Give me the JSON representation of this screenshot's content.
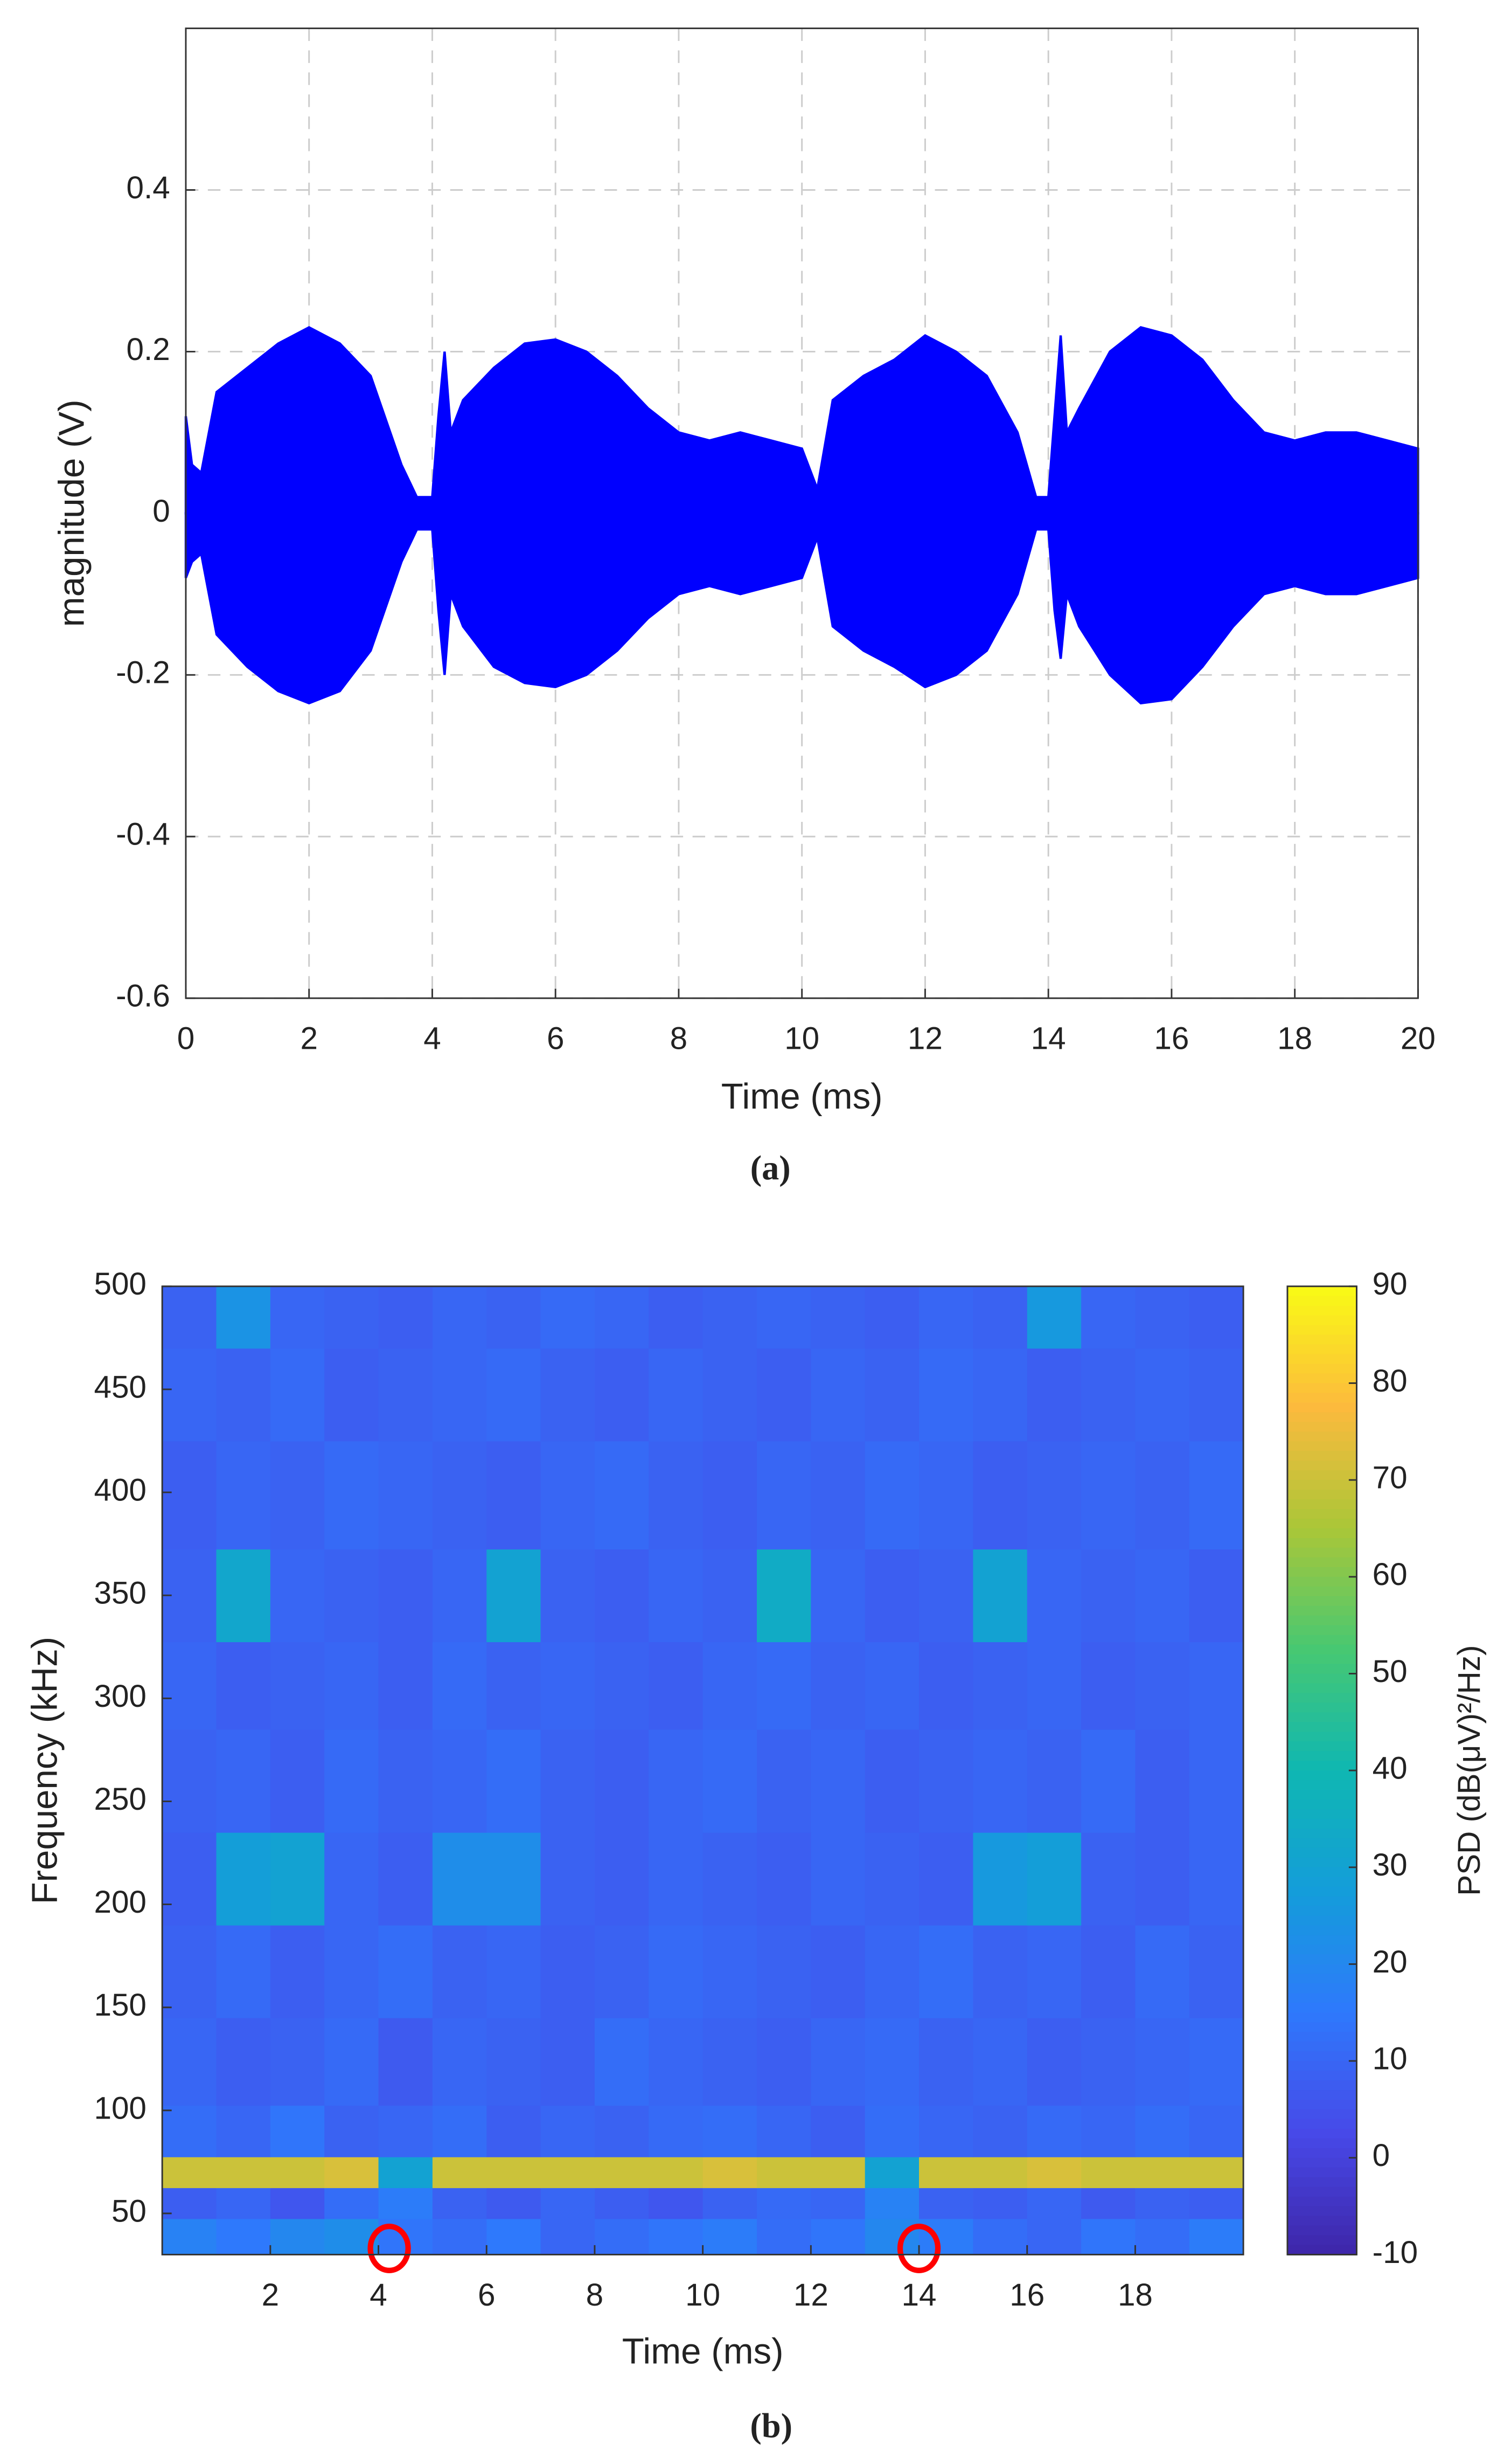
{
  "chart_data": [
    {
      "type": "area-band",
      "caption": "(a)",
      "xlabel": "Time (ms)",
      "ylabel": "magnitude (V)",
      "x": [
        0,
        0.1,
        0.25,
        0.5,
        1,
        1.5,
        2,
        2.5,
        3,
        3.5,
        3.75,
        4,
        4.1,
        4.2,
        4.3,
        4.5,
        5,
        5.5,
        6,
        6.5,
        7,
        7.5,
        8,
        8.5,
        9,
        9.5,
        10,
        10.25,
        10.5,
        11,
        11.5,
        12,
        12.5,
        13,
        13.5,
        13.8,
        14,
        14.1,
        14.2,
        14.3,
        14.5,
        15,
        15.5,
        16,
        16.5,
        17,
        17.5,
        18,
        18.5,
        19,
        19.5,
        20
      ],
      "upper": [
        0.12,
        0.06,
        0.05,
        0.15,
        0.18,
        0.21,
        0.23,
        0.21,
        0.17,
        0.06,
        0.02,
        0.02,
        0.12,
        0.2,
        0.1,
        0.14,
        0.18,
        0.21,
        0.215,
        0.2,
        0.17,
        0.13,
        0.1,
        0.09,
        0.1,
        0.09,
        0.08,
        0.03,
        0.14,
        0.17,
        0.19,
        0.22,
        0.2,
        0.17,
        0.1,
        0.02,
        0.02,
        0.12,
        0.22,
        0.1,
        0.13,
        0.2,
        0.23,
        0.22,
        0.19,
        0.14,
        0.1,
        0.09,
        0.1,
        0.1,
        0.09,
        0.08
      ],
      "lower": [
        -0.08,
        -0.06,
        -0.05,
        -0.15,
        -0.19,
        -0.22,
        -0.235,
        -0.22,
        -0.17,
        -0.06,
        -0.02,
        -0.02,
        -0.12,
        -0.2,
        -0.1,
        -0.14,
        -0.19,
        -0.21,
        -0.215,
        -0.2,
        -0.17,
        -0.13,
        -0.1,
        -0.09,
        -0.1,
        -0.09,
        -0.08,
        -0.03,
        -0.14,
        -0.17,
        -0.19,
        -0.215,
        -0.2,
        -0.17,
        -0.1,
        -0.02,
        -0.02,
        -0.12,
        -0.18,
        -0.1,
        -0.14,
        -0.2,
        -0.235,
        -0.23,
        -0.19,
        -0.14,
        -0.1,
        -0.09,
        -0.1,
        -0.1,
        -0.09,
        -0.08
      ],
      "color": "#0000ff",
      "xlim": [
        0,
        20
      ],
      "ylim": [
        -0.6,
        0.6
      ],
      "xticks": [
        0,
        2,
        4,
        6,
        8,
        10,
        12,
        14,
        16,
        18,
        20
      ],
      "yticks": [
        -0.6,
        -0.4,
        -0.2,
        0,
        0.2,
        0.4
      ],
      "grid": true
    },
    {
      "type": "heatmap",
      "caption": "(b)",
      "xlabel": "Time (ms)",
      "ylabel": "Frequency (kHz)",
      "colorbar_label": "PSD (dB(μV)²/Hz)",
      "colormap": "parula",
      "x": [
        0.5,
        1.5,
        2.5,
        3.5,
        4.5,
        5.5,
        6.5,
        7.5,
        8.5,
        9.5,
        10.5,
        11.5,
        12.5,
        13.5,
        14.5,
        15.5,
        16.5,
        17.5,
        18.5,
        19.5
      ],
      "y": [
        40,
        55,
        70,
        85,
        120,
        170,
        210,
        260,
        310,
        345,
        400,
        450,
        490
      ],
      "z": [
        [
          18,
          15,
          20,
          22,
          14,
          12,
          15,
          10,
          12,
          14,
          16,
          12,
          14,
          20,
          16,
          12,
          10,
          14,
          12,
          16
        ],
        [
          8,
          10,
          6,
          12,
          16,
          9,
          7,
          10,
          8,
          6,
          9,
          11,
          10,
          18,
          9,
          8,
          10,
          7,
          9,
          8
        ],
        [
          70,
          70,
          70,
          72,
          30,
          70,
          70,
          70,
          70,
          70,
          72,
          70,
          70,
          30,
          70,
          70,
          72,
          70,
          70,
          70
        ],
        [
          12,
          10,
          14,
          9,
          10,
          12,
          8,
          10,
          9,
          11,
          12,
          10,
          8,
          12,
          10,
          9,
          11,
          10,
          12,
          10
        ],
        [
          10,
          8,
          9,
          11,
          7,
          10,
          9,
          8,
          12,
          10,
          9,
          8,
          10,
          11,
          9,
          10,
          8,
          9,
          10,
          11
        ],
        [
          9,
          11,
          8,
          10,
          12,
          9,
          10,
          8,
          9,
          11,
          10,
          9,
          8,
          10,
          12,
          9,
          10,
          8,
          11,
          9
        ],
        [
          8,
          28,
          30,
          10,
          8,
          22,
          22,
          9,
          8,
          10,
          9,
          8,
          10,
          9,
          8,
          26,
          28,
          9,
          8,
          10
        ],
        [
          9,
          10,
          8,
          11,
          9,
          10,
          12,
          9,
          8,
          10,
          11,
          9,
          10,
          8,
          9,
          10,
          9,
          11,
          8,
          10
        ],
        [
          10,
          8,
          9,
          10,
          8,
          11,
          9,
          10,
          9,
          8,
          10,
          11,
          9,
          10,
          8,
          9,
          10,
          8,
          9,
          10
        ],
        [
          9,
          32,
          10,
          9,
          8,
          10,
          30,
          9,
          8,
          10,
          9,
          34,
          10,
          8,
          9,
          30,
          10,
          9,
          10,
          8
        ],
        [
          8,
          10,
          9,
          11,
          10,
          9,
          8,
          10,
          11,
          9,
          8,
          10,
          9,
          11,
          10,
          8,
          9,
          10,
          9,
          11
        ],
        [
          10,
          9,
          11,
          8,
          9,
          10,
          11,
          9,
          8,
          10,
          9,
          8,
          10,
          9,
          11,
          10,
          8,
          9,
          10,
          9
        ],
        [
          9,
          24,
          10,
          9,
          8,
          10,
          9,
          11,
          10,
          8,
          9,
          10,
          9,
          8,
          10,
          9,
          26,
          10,
          9,
          8
        ]
      ],
      "xlim": [
        0,
        20
      ],
      "ylim": [
        30,
        500
      ],
      "clim": [
        -10,
        90
      ],
      "xticks": [
        2,
        4,
        6,
        8,
        10,
        12,
        14,
        16,
        18
      ],
      "yticks": [
        50,
        100,
        150,
        200,
        250,
        300,
        350,
        400,
        450,
        500
      ],
      "cticks": [
        -10,
        0,
        10,
        20,
        30,
        40,
        50,
        60,
        70,
        80,
        90
      ],
      "annotations": [
        {
          "type": "circle",
          "x": 4.2,
          "y": 33,
          "color": "#ff0000"
        },
        {
          "type": "circle",
          "x": 14,
          "y": 33,
          "color": "#ff0000"
        }
      ]
    }
  ]
}
